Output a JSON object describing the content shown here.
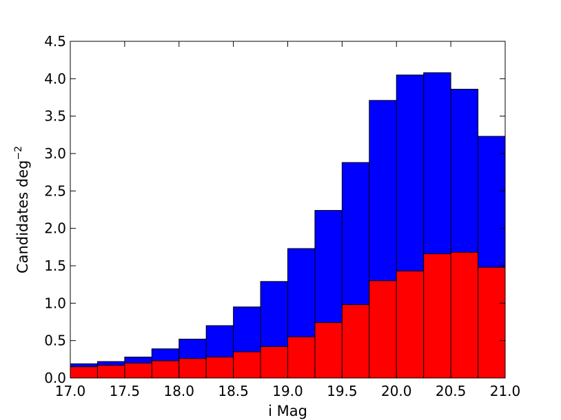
{
  "chart_data": {
    "type": "bar",
    "stacked": "overlay",
    "xlabel": "i Mag",
    "ylabel": "Candidates deg",
    "ylabel_superscript": "−2",
    "xlim": [
      17.0,
      21.0
    ],
    "ylim": [
      0.0,
      4.5
    ],
    "x_ticks": [
      "17.0",
      "17.5",
      "18.0",
      "18.5",
      "19.0",
      "19.5",
      "20.0",
      "20.5",
      "21.0"
    ],
    "y_ticks": [
      "0.0",
      "0.5",
      "1.0",
      "1.5",
      "2.0",
      "2.5",
      "3.0",
      "3.5",
      "4.0",
      "4.5"
    ],
    "bin_edges": [
      17.0,
      17.25,
      17.5,
      17.75,
      18.0,
      18.25,
      18.5,
      18.75,
      19.0,
      19.25,
      19.5,
      19.75,
      20.0,
      20.25,
      20.5,
      20.75,
      21.0
    ],
    "series": [
      {
        "color": "#0000ff",
        "values": [
          0.19,
          0.22,
          0.28,
          0.39,
          0.52,
          0.7,
          0.95,
          1.29,
          1.73,
          2.24,
          2.88,
          3.71,
          4.05,
          4.08,
          3.86,
          3.23
        ]
      },
      {
        "color": "#ff0000",
        "values": [
          0.15,
          0.17,
          0.2,
          0.23,
          0.26,
          0.28,
          0.35,
          0.42,
          0.55,
          0.74,
          0.98,
          1.3,
          1.43,
          1.66,
          1.68,
          1.48
        ]
      }
    ]
  }
}
